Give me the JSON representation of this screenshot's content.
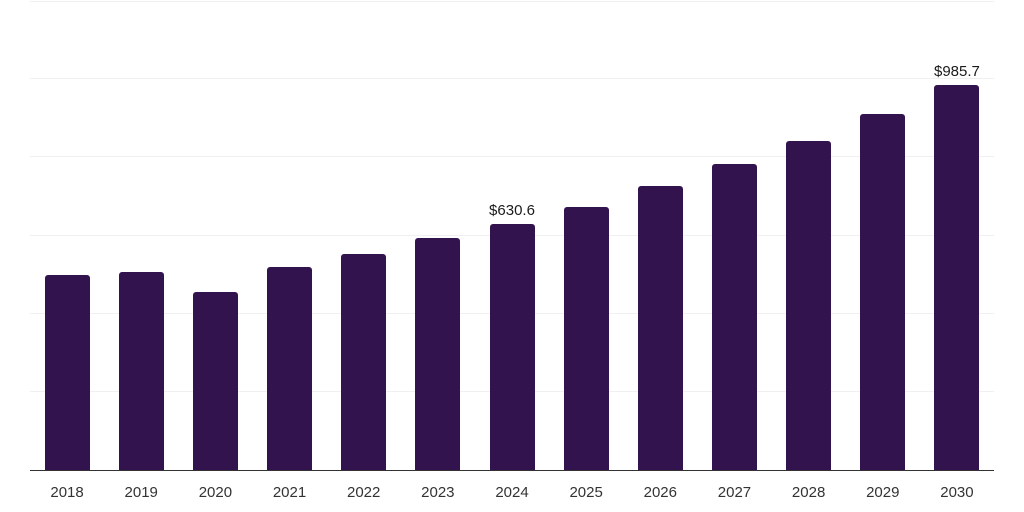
{
  "chart_data": {
    "type": "bar",
    "title": "",
    "xlabel": "",
    "ylabel": "",
    "categories": [
      "2018",
      "2019",
      "2020",
      "2021",
      "2022",
      "2023",
      "2024",
      "2025",
      "2026",
      "2027",
      "2028",
      "2029",
      "2030"
    ],
    "values": [
      499,
      507,
      455,
      520,
      552,
      593,
      630.6,
      673,
      726,
      782,
      842,
      910,
      985.7
    ],
    "data_labels": {
      "2024": "$630.6",
      "2030": "$985.7"
    },
    "ylim": [
      0,
      1200
    ],
    "gridline_step": 200,
    "grid": true,
    "legend_position": "none",
    "colors": {
      "bar": "#33134d",
      "axis_line": "#333333",
      "gridline": "#f0f0f3",
      "data_label_text": "#1a1a1a",
      "tick_label_text": "#333333",
      "background": "#ffffff"
    }
  }
}
